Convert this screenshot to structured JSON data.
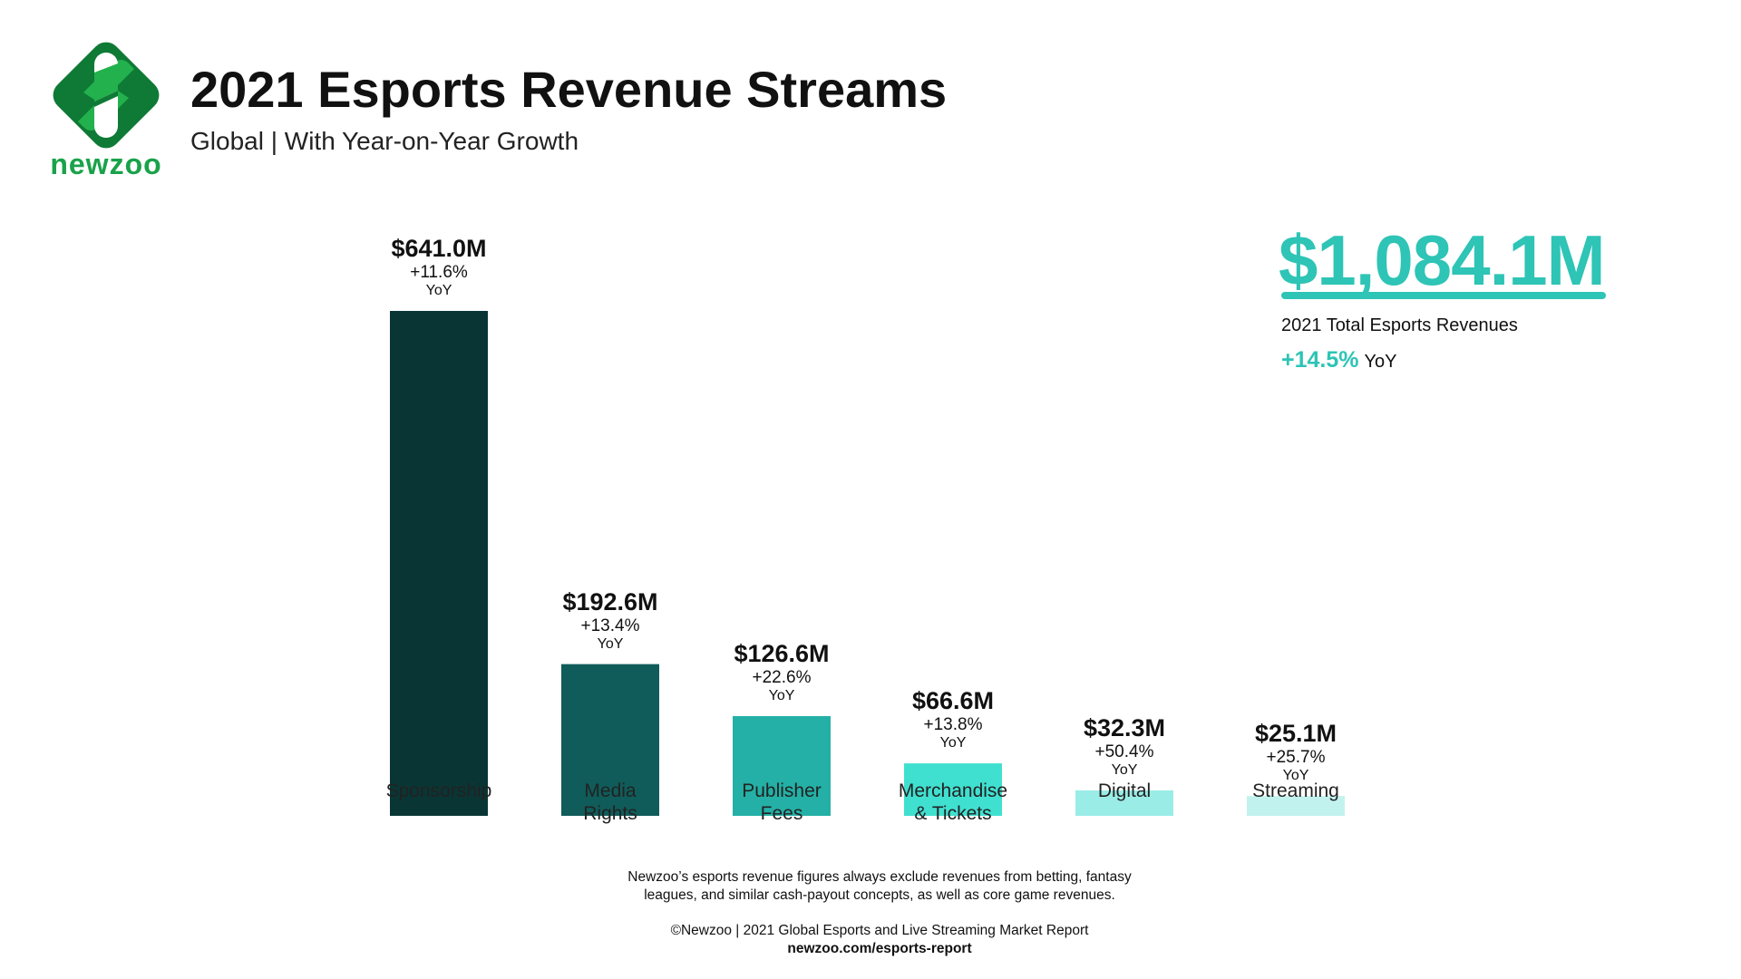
{
  "header": {
    "logo_text": "newzoo",
    "title": "2021 Esports Revenue Streams",
    "subtitle": "Global | With Year-on-Year Growth"
  },
  "colors": {
    "accent": "#2ec4b6",
    "logo_dark": "#0e7a35",
    "logo_light": "#22b14c"
  },
  "total": {
    "value": "$1,084.1M",
    "label": "2021 Total Esports Revenues",
    "growth": "+14.5%",
    "growth_suffix": "YoY"
  },
  "chart_data": {
    "type": "bar",
    "title": "2021 Esports Revenue Streams",
    "subtitle": "Global | With Year-on-Year Growth",
    "unit": "$M",
    "grid": false,
    "categories": [
      "Sponsorship",
      "Media Rights",
      "Publisher Fees",
      "Merchandise & Tickets",
      "Digital",
      "Streaming"
    ],
    "category_lines": [
      [
        "Sponsorship"
      ],
      [
        "Media",
        "Rights"
      ],
      [
        "Publisher",
        "Fees"
      ],
      [
        "Merchandise",
        "& Tickets"
      ],
      [
        "Digital"
      ],
      [
        "Streaming"
      ]
    ],
    "values": [
      641.0,
      192.6,
      126.6,
      66.6,
      32.3,
      25.1
    ],
    "value_labels": [
      "$641.0M",
      "$192.6M",
      "$126.6M",
      "$66.6M",
      "$32.3M",
      "$25.1M"
    ],
    "growth_labels": [
      "+11.6%",
      "+13.4%",
      "+22.6%",
      "+13.8%",
      "+50.4%",
      "+25.7%"
    ],
    "growth_suffix": "YoY",
    "bar_colors": [
      "#0a3535",
      "#0f5c5a",
      "#24b0a6",
      "#40e0d0",
      "#9aede6",
      "#c2f2ee"
    ]
  },
  "footer": {
    "note_line1": "Newzoo’s esports revenue figures always exclude revenues from betting, fantasy",
    "note_line2": "leagues, and similar cash-payout concepts, as well as core game revenues.",
    "copyright": "©Newzoo | 2021 Global Esports and Live Streaming Market Report",
    "url": "newzoo.com/esports-report"
  }
}
